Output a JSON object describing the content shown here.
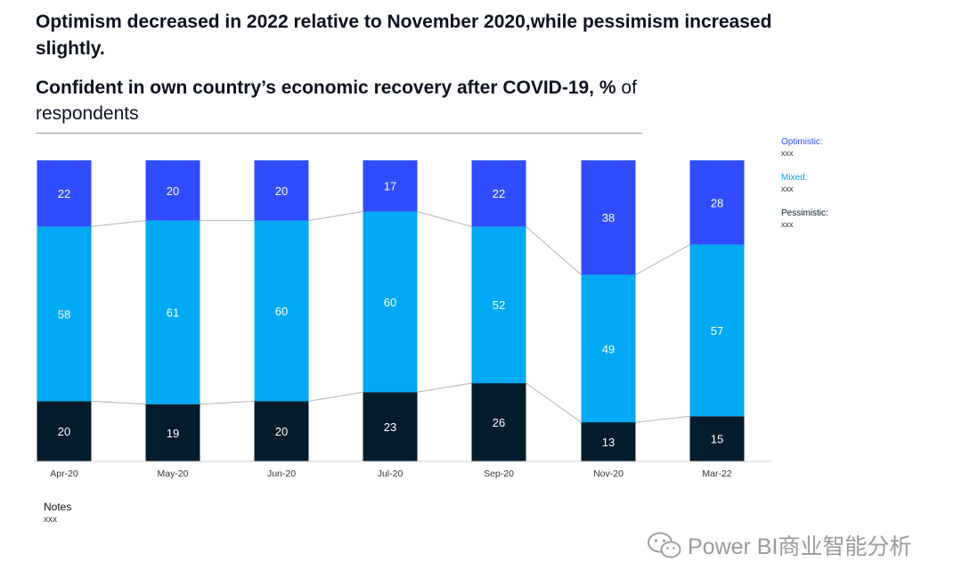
{
  "headline": "Optimism decreased in 2022 relative to November 2020,while pessimism increased slightly.",
  "chart_title_bold": "Confident in own country’s economic recovery after COVID-19,",
  "chart_title_unit": "%",
  "chart_title_rest": "of respondents",
  "legend": [
    {
      "label": "Optimistic:",
      "sub": "xxx",
      "color": "#2f4dff"
    },
    {
      "label": "Mixed:",
      "sub": "xxx",
      "color": "#00a9f4"
    },
    {
      "label": "Pessimistic:",
      "sub": "xxx",
      "color": "#051c2c"
    }
  ],
  "notes": {
    "label": "Notes",
    "text": "xxx"
  },
  "watermark": "Power BI商业智能分析",
  "colors": {
    "optimistic": "#2f4dff",
    "mixed": "#00a9f4",
    "pessimistic": "#051c2c",
    "connector": "#b3b3b3"
  },
  "chart_data": {
    "type": "bar",
    "stacked": true,
    "categories": [
      "Apr-20",
      "May-20",
      "Jun-20",
      "Jul-20",
      "Sep-20",
      "Nov-20",
      "Mar-22"
    ],
    "series": [
      {
        "name": "Pessimistic",
        "values": [
          20,
          19,
          20,
          23,
          26,
          13,
          15
        ]
      },
      {
        "name": "Mixed",
        "values": [
          58,
          61,
          60,
          60,
          52,
          49,
          57
        ]
      },
      {
        "name": "Optimistic",
        "values": [
          22,
          20,
          20,
          17,
          22,
          38,
          28
        ]
      }
    ],
    "ylim": [
      0,
      100
    ],
    "grid": false,
    "legend_position": "right",
    "data_labels": true,
    "connector_lines": true
  }
}
